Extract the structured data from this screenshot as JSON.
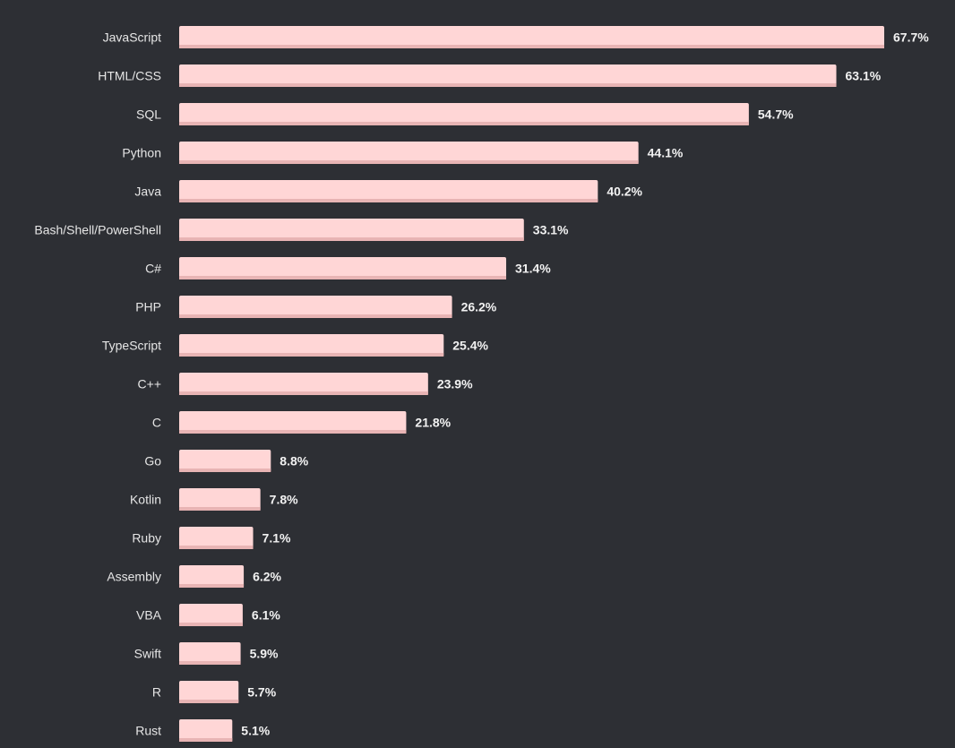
{
  "colors": {
    "background": "#2d2f34",
    "bar_fill": "#ffd6d6",
    "bar_shade": "#e8b4b4",
    "label_text": "#e6e6e6",
    "value_text": "#f2f2f2"
  },
  "chart_data": {
    "type": "bar",
    "orientation": "horizontal",
    "categories": [
      "JavaScript",
      "HTML/CSS",
      "SQL",
      "Python",
      "Java",
      "Bash/Shell/PowerShell",
      "C#",
      "PHP",
      "TypeScript",
      "C++",
      "C",
      "Go",
      "Kotlin",
      "Ruby",
      "Assembly",
      "VBA",
      "Swift",
      "R",
      "Rust"
    ],
    "values": [
      67.7,
      63.1,
      54.7,
      44.1,
      40.2,
      33.1,
      31.4,
      26.2,
      25.4,
      23.9,
      21.8,
      8.8,
      7.8,
      7.1,
      6.2,
      6.1,
      5.9,
      5.7,
      5.1
    ],
    "value_labels": [
      "67.7%",
      "63.1%",
      "54.7%",
      "44.1%",
      "40.2%",
      "33.1%",
      "31.4%",
      "26.2%",
      "25.4%",
      "23.9%",
      "21.8%",
      "8.8%",
      "7.8%",
      "7.1%",
      "6.2%",
      "6.1%",
      "5.9%",
      "5.7%",
      "5.1%"
    ],
    "unit": "%",
    "xlim": [
      0,
      67.7
    ],
    "grid": false,
    "legend": "none",
    "title": "",
    "xlabel": "",
    "ylabel": ""
  }
}
